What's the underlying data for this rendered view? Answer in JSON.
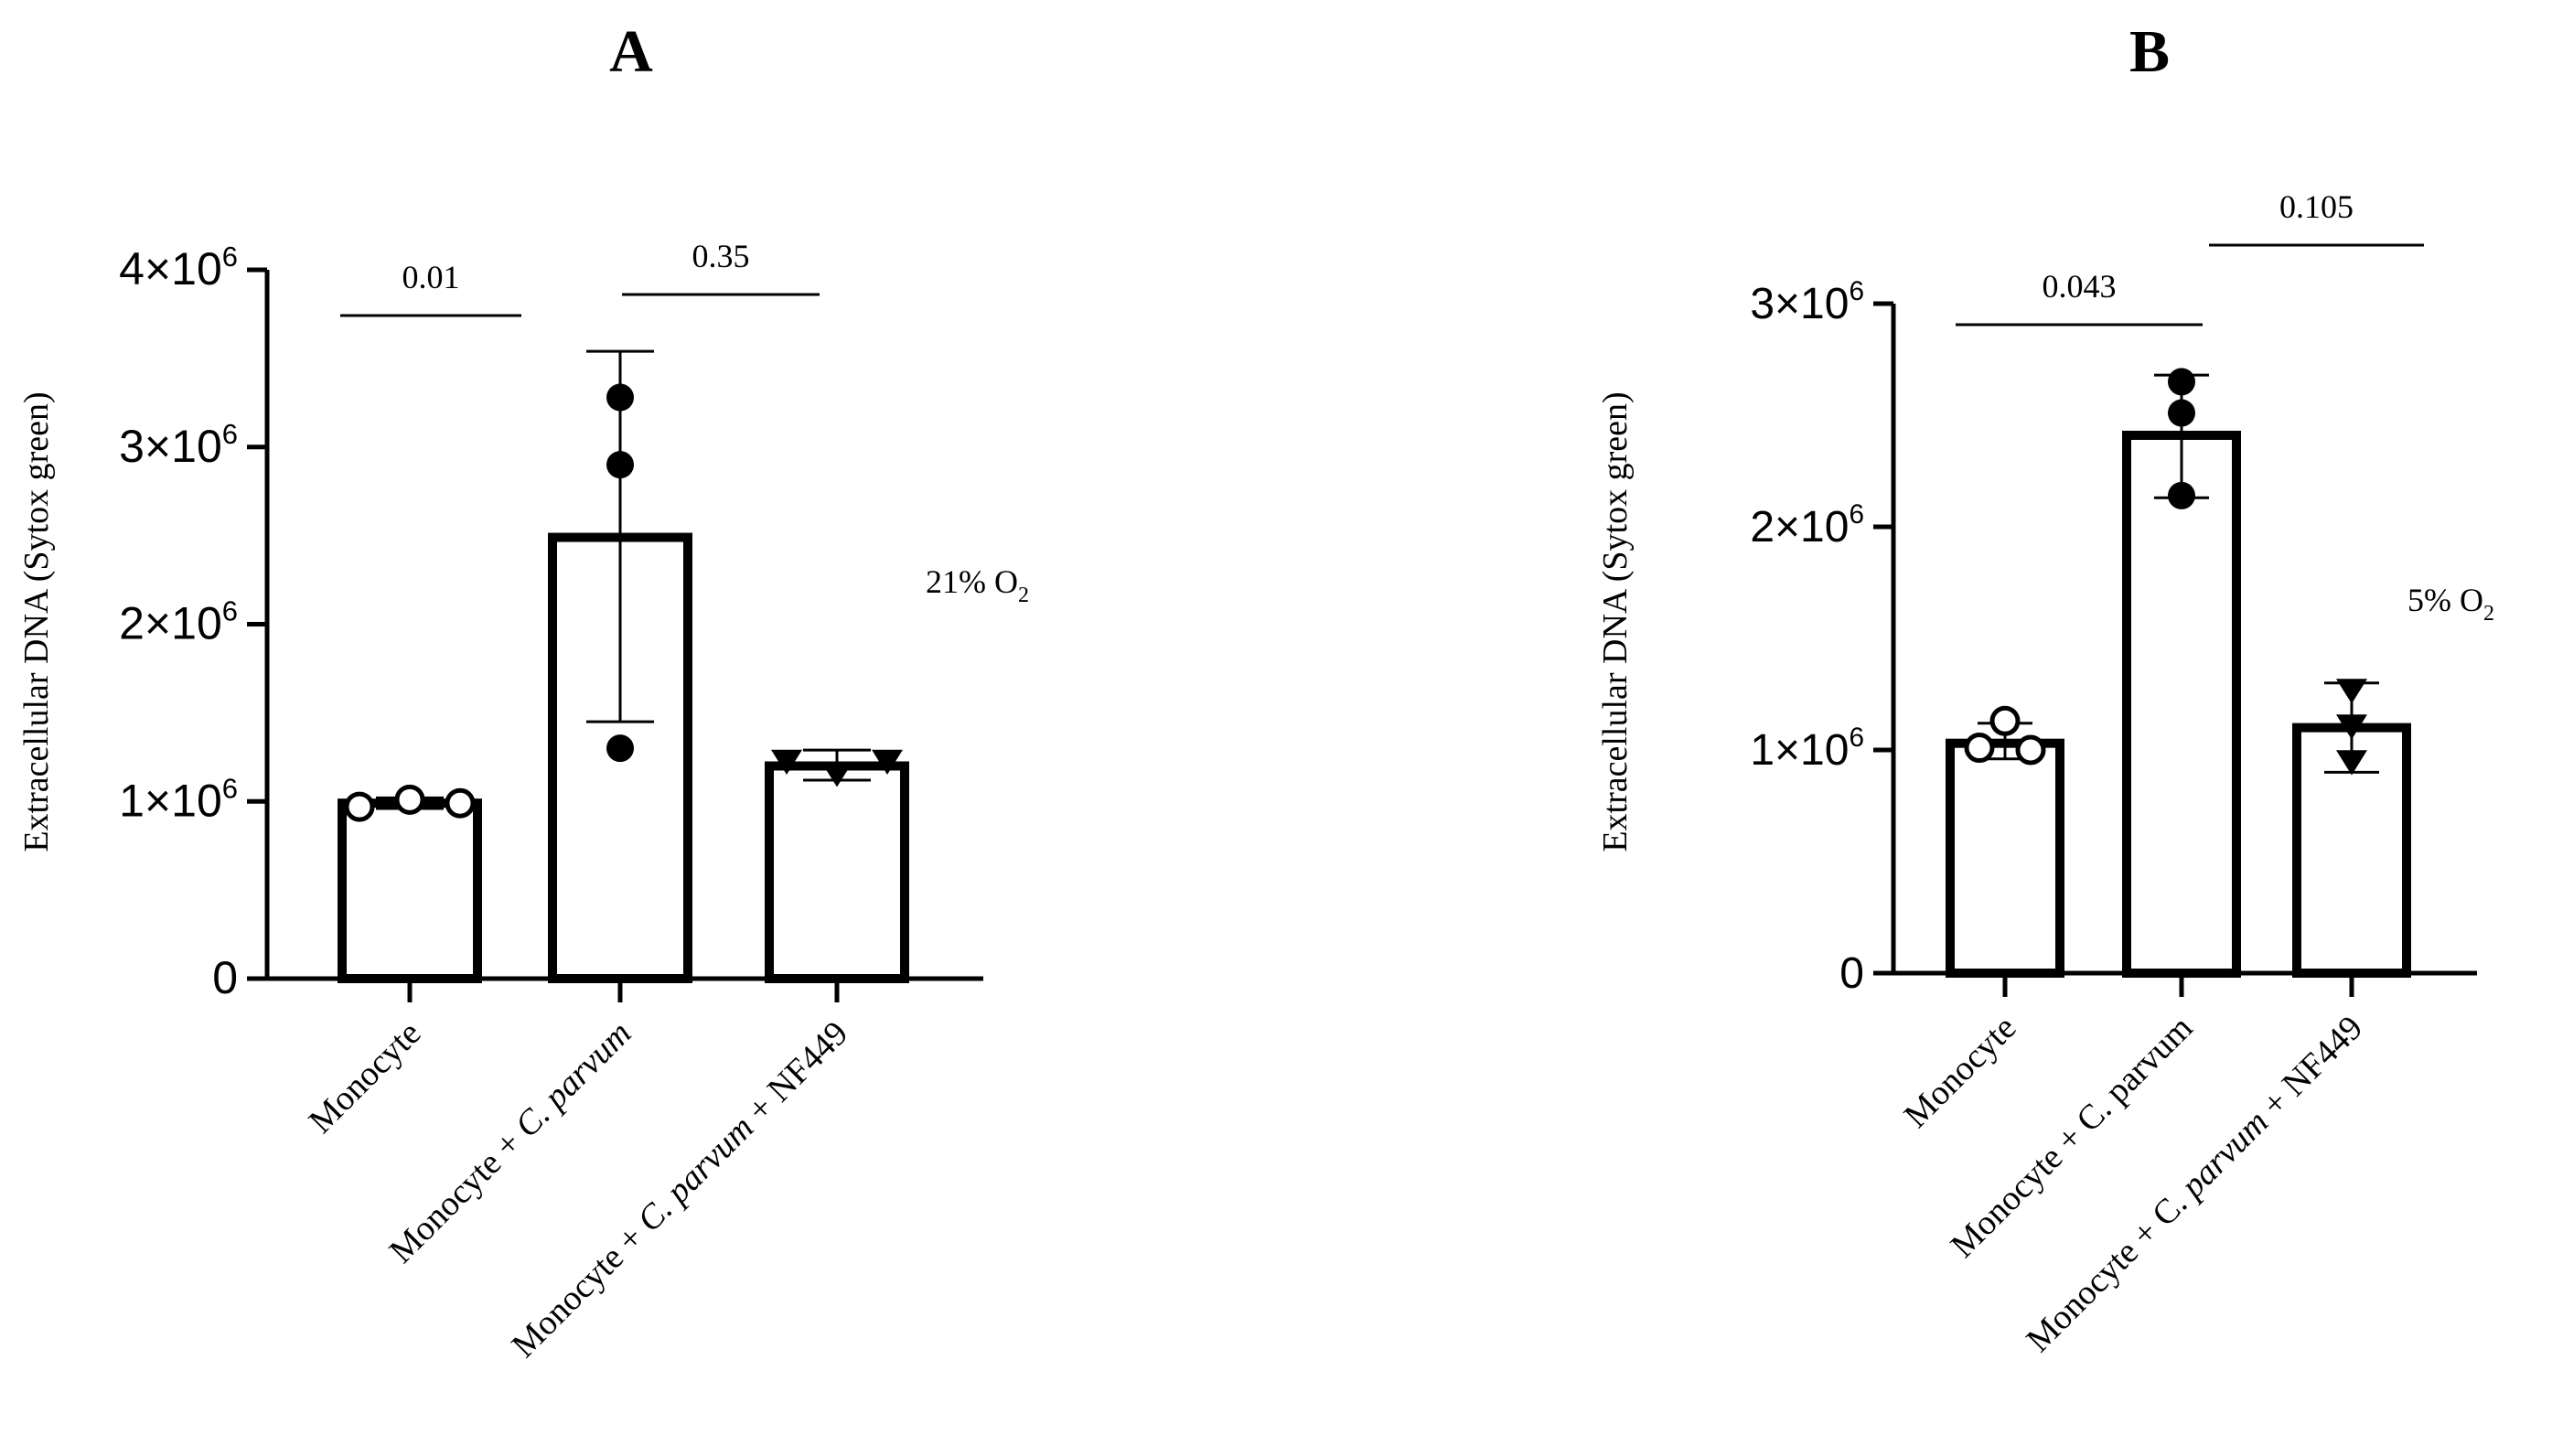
{
  "chart_data": [
    {
      "panel_label": "A",
      "type": "bar",
      "categories": [
        "Monocyte",
        "Monocyte + C. parvum",
        "Monocyte + C. parvum + NF449"
      ],
      "category_parts": [
        [
          {
            "text": "Monocyte",
            "italic": false
          }
        ],
        [
          {
            "text": "Monocyte + ",
            "italic": false
          },
          {
            "text": "C. parvum",
            "italic": true
          }
        ],
        [
          {
            "text": "Monocyte + ",
            "italic": false
          },
          {
            "text": "C. parvum",
            "italic": true
          },
          {
            "text": " + NF449",
            "italic": false
          }
        ]
      ],
      "values": [
        990000,
        2490000,
        1200000
      ],
      "error": [
        {
          "low": 960000,
          "high": 1020000
        },
        {
          "low": 1450000,
          "high": 3540000
        },
        {
          "low": 1120000,
          "high": 1290000
        }
      ],
      "points": [
        [
          970000,
          1010000,
          990000
        ],
        [
          3280000,
          2900000,
          1300000
        ],
        [
          1230000,
          1160000,
          1230000
        ]
      ],
      "markers": [
        "circle-open",
        "circle-filled",
        "triangle-down-filled"
      ],
      "ylabel": "Extracellular DNA (Sytox green)",
      "ylim": [
        0,
        4000000
      ],
      "yticks": [
        {
          "value": 0,
          "label": "0"
        },
        {
          "value": 1000000,
          "label": "1×10",
          "exp": "6"
        },
        {
          "value": 2000000,
          "label": "2×10",
          "exp": "6"
        },
        {
          "value": 3000000,
          "label": "3×10",
          "exp": "6"
        },
        {
          "value": 4000000,
          "label": "4×10",
          "exp": "6"
        }
      ],
      "comparisons": [
        {
          "from": 0,
          "to": 1,
          "label": "0.01"
        },
        {
          "from": 1,
          "to": 2,
          "label": "0.35"
        }
      ],
      "annotation": {
        "text": "21% O",
        "sub": "2"
      }
    },
    {
      "panel_label": "B",
      "type": "bar",
      "categories": [
        "Monocyte",
        "Monocyte + C. parvum",
        "Monocyte + C. parvum + NF449"
      ],
      "category_parts": [
        [
          {
            "text": "Monocyte",
            "italic": false
          }
        ],
        [
          {
            "text": "Monocyte + C. parvum",
            "italic": false
          }
        ],
        [
          {
            "text": "Monocyte + C. ",
            "italic": false
          },
          {
            "text": "parvum",
            "italic": true
          },
          {
            "text": " + NF449",
            "italic": false
          }
        ]
      ],
      "values": [
        1030000,
        2410000,
        1100000
      ],
      "error": [
        {
          "low": 960000,
          "high": 1120000
        },
        {
          "low": 2130000,
          "high": 2680000
        },
        {
          "low": 900000,
          "high": 1300000
        }
      ],
      "points": [
        [
          1130000,
          1010000,
          1000000
        ],
        [
          2650000,
          2510000,
          2140000
        ],
        [
          1270000,
          1110000,
          950000
        ]
      ],
      "markers": [
        "circle-open",
        "circle-filled",
        "triangle-down-filled"
      ],
      "ylabel": "Extracellular DNA (Sytox green)",
      "ylim": [
        0,
        3000000
      ],
      "yticks": [
        {
          "value": 0,
          "label": "0"
        },
        {
          "value": 1000000,
          "label": "1×10",
          "exp": "6"
        },
        {
          "value": 2000000,
          "label": "2×10",
          "exp": "6"
        },
        {
          "value": 3000000,
          "label": "3×10",
          "exp": "6"
        }
      ],
      "comparisons": [
        {
          "from": 0,
          "to": 1,
          "label": "0.043"
        },
        {
          "from": 1,
          "to": 2,
          "label": "0.105"
        }
      ],
      "annotation": {
        "text": "5% O",
        "sub": "2"
      }
    }
  ]
}
